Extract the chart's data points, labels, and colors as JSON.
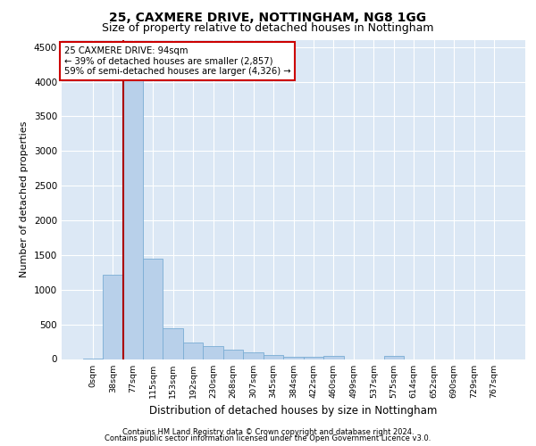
{
  "title1": "25, CAXMERE DRIVE, NOTTINGHAM, NG8 1GG",
  "title2": "Size of property relative to detached houses in Nottingham",
  "xlabel": "Distribution of detached houses by size in Nottingham",
  "ylabel": "Number of detached properties",
  "bar_labels": [
    "0sqm",
    "38sqm",
    "77sqm",
    "115sqm",
    "153sqm",
    "192sqm",
    "230sqm",
    "268sqm",
    "307sqm",
    "345sqm",
    "384sqm",
    "422sqm",
    "460sqm",
    "499sqm",
    "537sqm",
    "575sqm",
    "614sqm",
    "652sqm",
    "690sqm",
    "729sqm",
    "767sqm"
  ],
  "bar_values": [
    5,
    1220,
    4070,
    1450,
    440,
    240,
    185,
    135,
    100,
    60,
    30,
    35,
    40,
    0,
    0,
    40,
    0,
    0,
    0,
    0,
    0
  ],
  "bar_color": "#b8d0ea",
  "bar_edge_color": "#7aadd4",
  "vline_color": "#aa0000",
  "vline_pos": 1.5,
  "ylim": [
    0,
    4600
  ],
  "yticks": [
    0,
    500,
    1000,
    1500,
    2000,
    2500,
    3000,
    3500,
    4000,
    4500
  ],
  "annotation_text": "25 CAXMERE DRIVE: 94sqm\n← 39% of detached houses are smaller (2,857)\n59% of semi-detached houses are larger (4,326) →",
  "annotation_box_color": "#ffffff",
  "annotation_box_edge": "#cc0000",
  "footer1": "Contains HM Land Registry data © Crown copyright and database right 2024.",
  "footer2": "Contains public sector information licensed under the Open Government Licence v3.0.",
  "plot_bg_color": "#dce8f5",
  "grid_color": "#ffffff",
  "title1_fontsize": 10,
  "title2_fontsize": 9
}
